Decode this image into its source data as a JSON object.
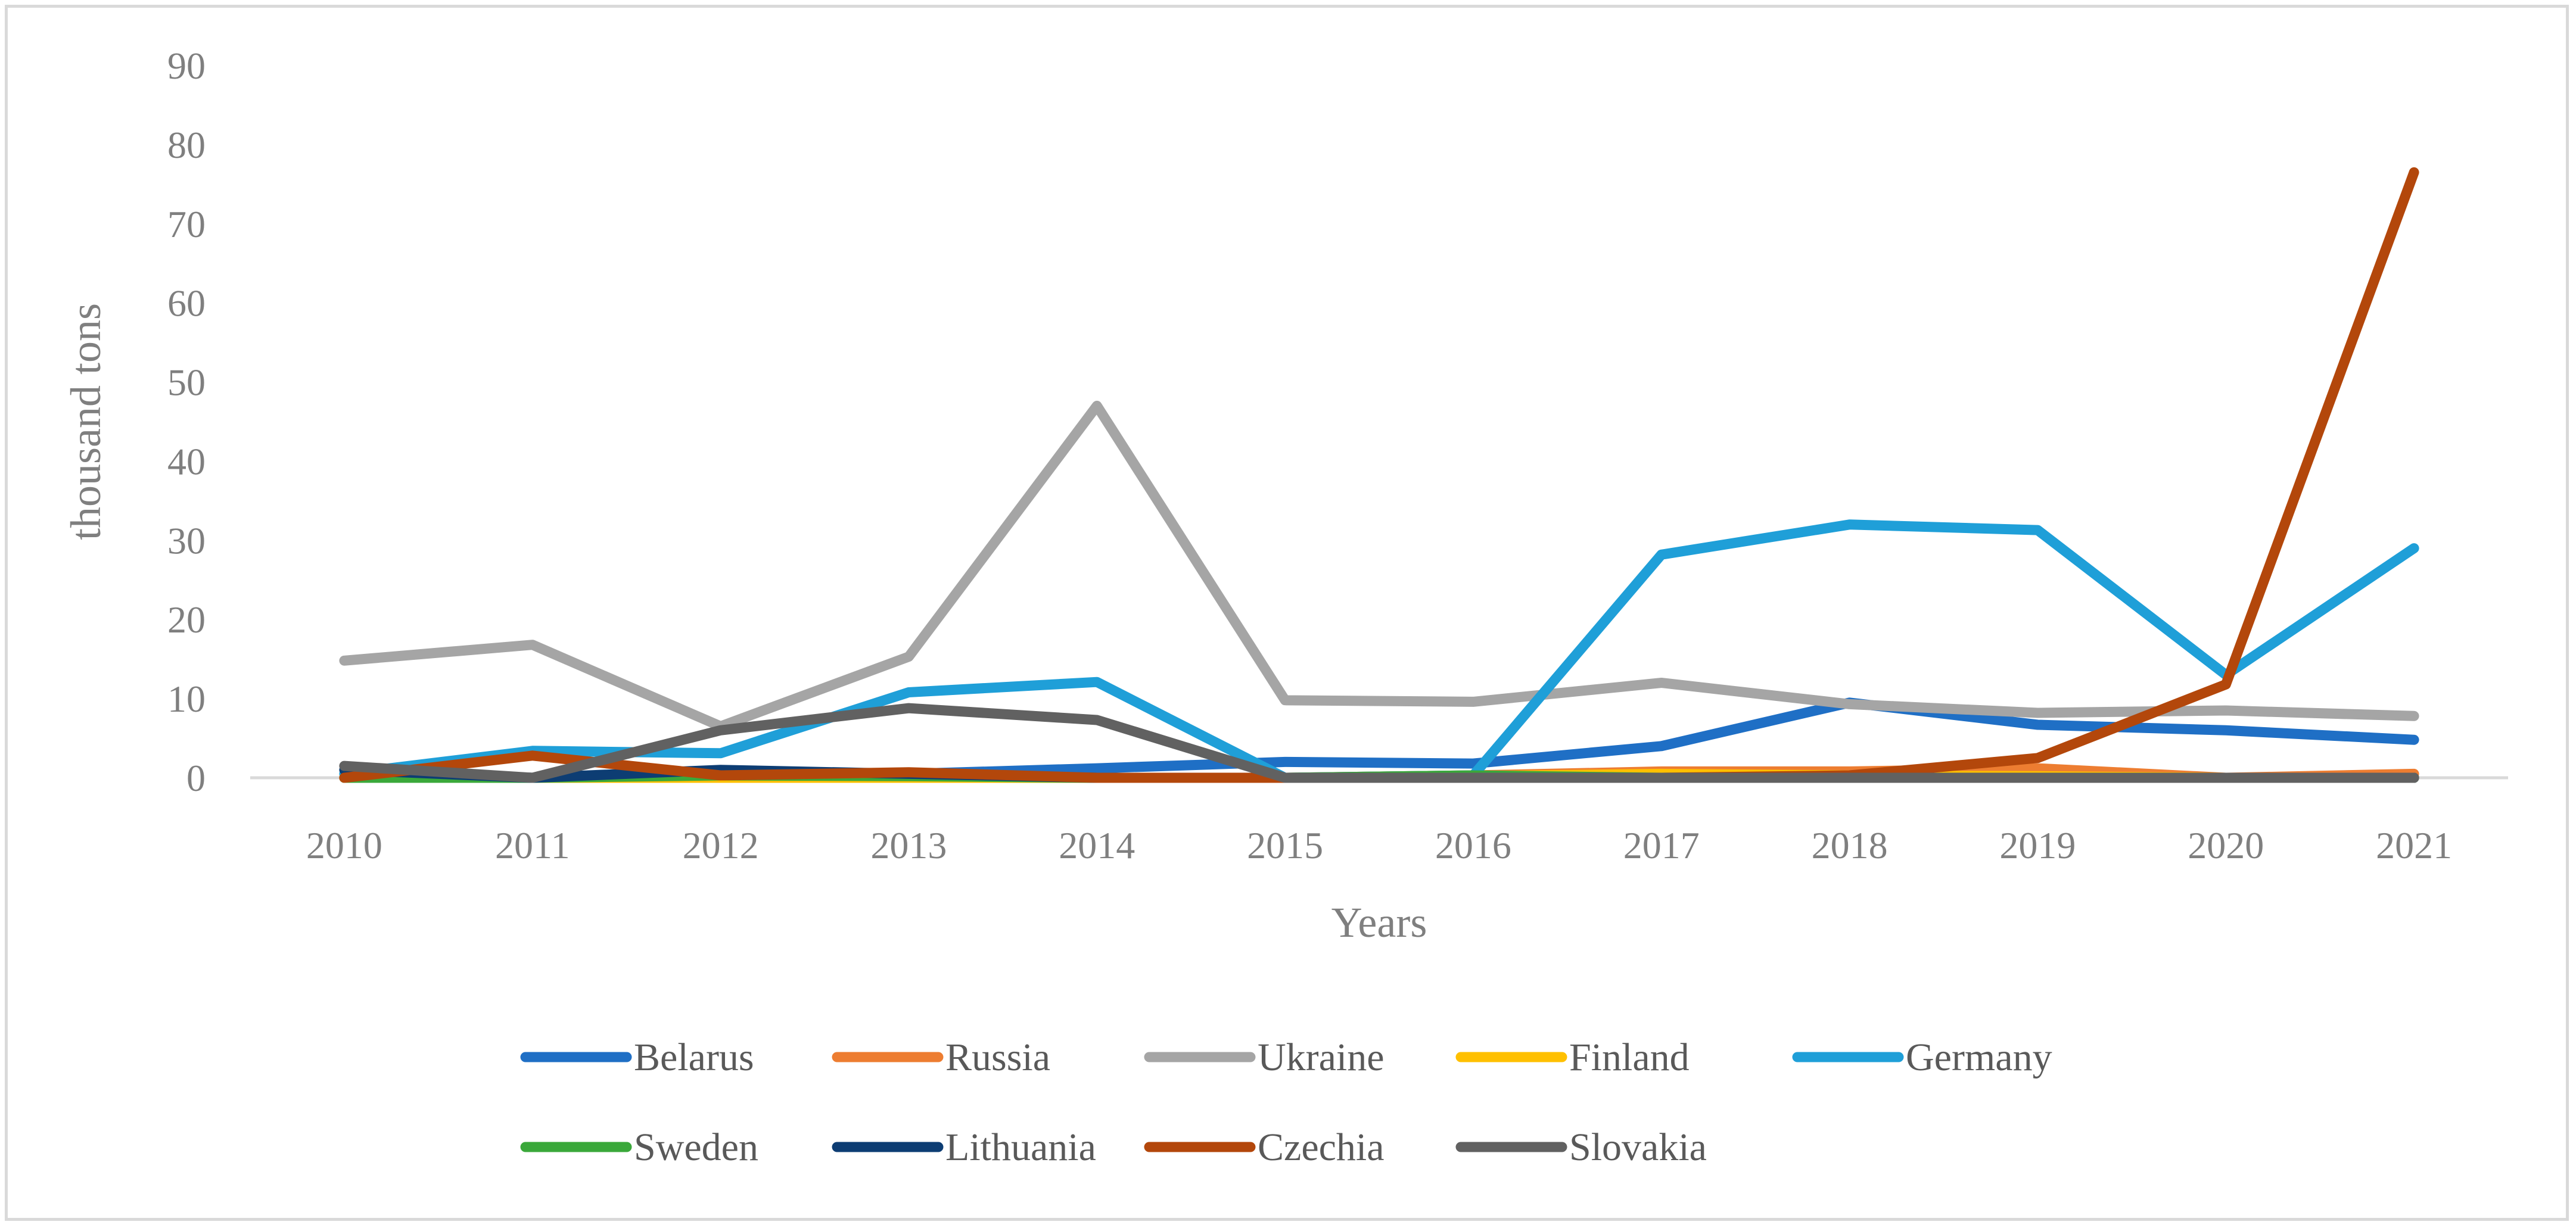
{
  "chart_data": {
    "type": "line",
    "title": "",
    "xlabel": "Years",
    "ylabel": "thousand tons",
    "categories": [
      "2010",
      "2011",
      "2012",
      "2013",
      "2014",
      "2015",
      "2016",
      "2017",
      "2018",
      "2019",
      "2020",
      "2021"
    ],
    "ylim": [
      0,
      90
    ],
    "yticks": [
      0,
      10,
      20,
      30,
      40,
      50,
      60,
      70,
      80,
      90
    ],
    "grid": false,
    "legend_position": "bottom",
    "series": [
      {
        "name": "Belarus",
        "color": "#1f6fc5",
        "values": [
          0,
          0,
          0.5,
          0.5,
          1.2,
          2.0,
          1.8,
          4.0,
          9.5,
          6.7,
          6.0,
          4.8
        ]
      },
      {
        "name": "Russia",
        "color": "#ed7d31",
        "values": [
          0,
          0,
          0,
          0,
          0,
          0,
          0.3,
          0.8,
          0.8,
          1.2,
          0,
          0.5
        ]
      },
      {
        "name": "Ukraine",
        "color": "#a5a5a5",
        "values": [
          14.8,
          16.8,
          6.5,
          15.3,
          47.0,
          9.8,
          9.6,
          12.0,
          9.3,
          8.2,
          8.5,
          7.8
        ]
      },
      {
        "name": "Finland",
        "color": "#ffc000",
        "values": [
          0,
          0,
          0,
          0,
          0,
          0,
          0.2,
          0.5,
          0.3,
          0.2,
          0,
          0
        ]
      },
      {
        "name": "Germany",
        "color": "#1f9fd8",
        "values": [
          0.5,
          3.4,
          3.1,
          10.8,
          12.1,
          0,
          0.3,
          28.2,
          32.0,
          31.3,
          13.0,
          29.0
        ]
      },
      {
        "name": "Sweden",
        "color": "#3aa83a",
        "values": [
          0,
          0,
          0.3,
          0.2,
          0,
          0,
          0.3,
          0,
          0,
          0,
          0,
          0
        ]
      },
      {
        "name": "Lithuania",
        "color": "#0d3d73",
        "values": [
          1.0,
          0,
          1.0,
          0.5,
          0,
          0,
          0,
          0,
          0,
          0,
          0,
          0
        ]
      },
      {
        "name": "Czechia",
        "color": "#b3470b",
        "values": [
          0,
          2.8,
          0.3,
          0.7,
          0,
          0,
          0,
          0,
          0.3,
          2.5,
          11.8,
          76.5
        ]
      },
      {
        "name": "Slovakia",
        "color": "#616161",
        "values": [
          1.5,
          0,
          6.0,
          8.8,
          7.3,
          0,
          0,
          0,
          0,
          0,
          0,
          0
        ]
      }
    ]
  }
}
